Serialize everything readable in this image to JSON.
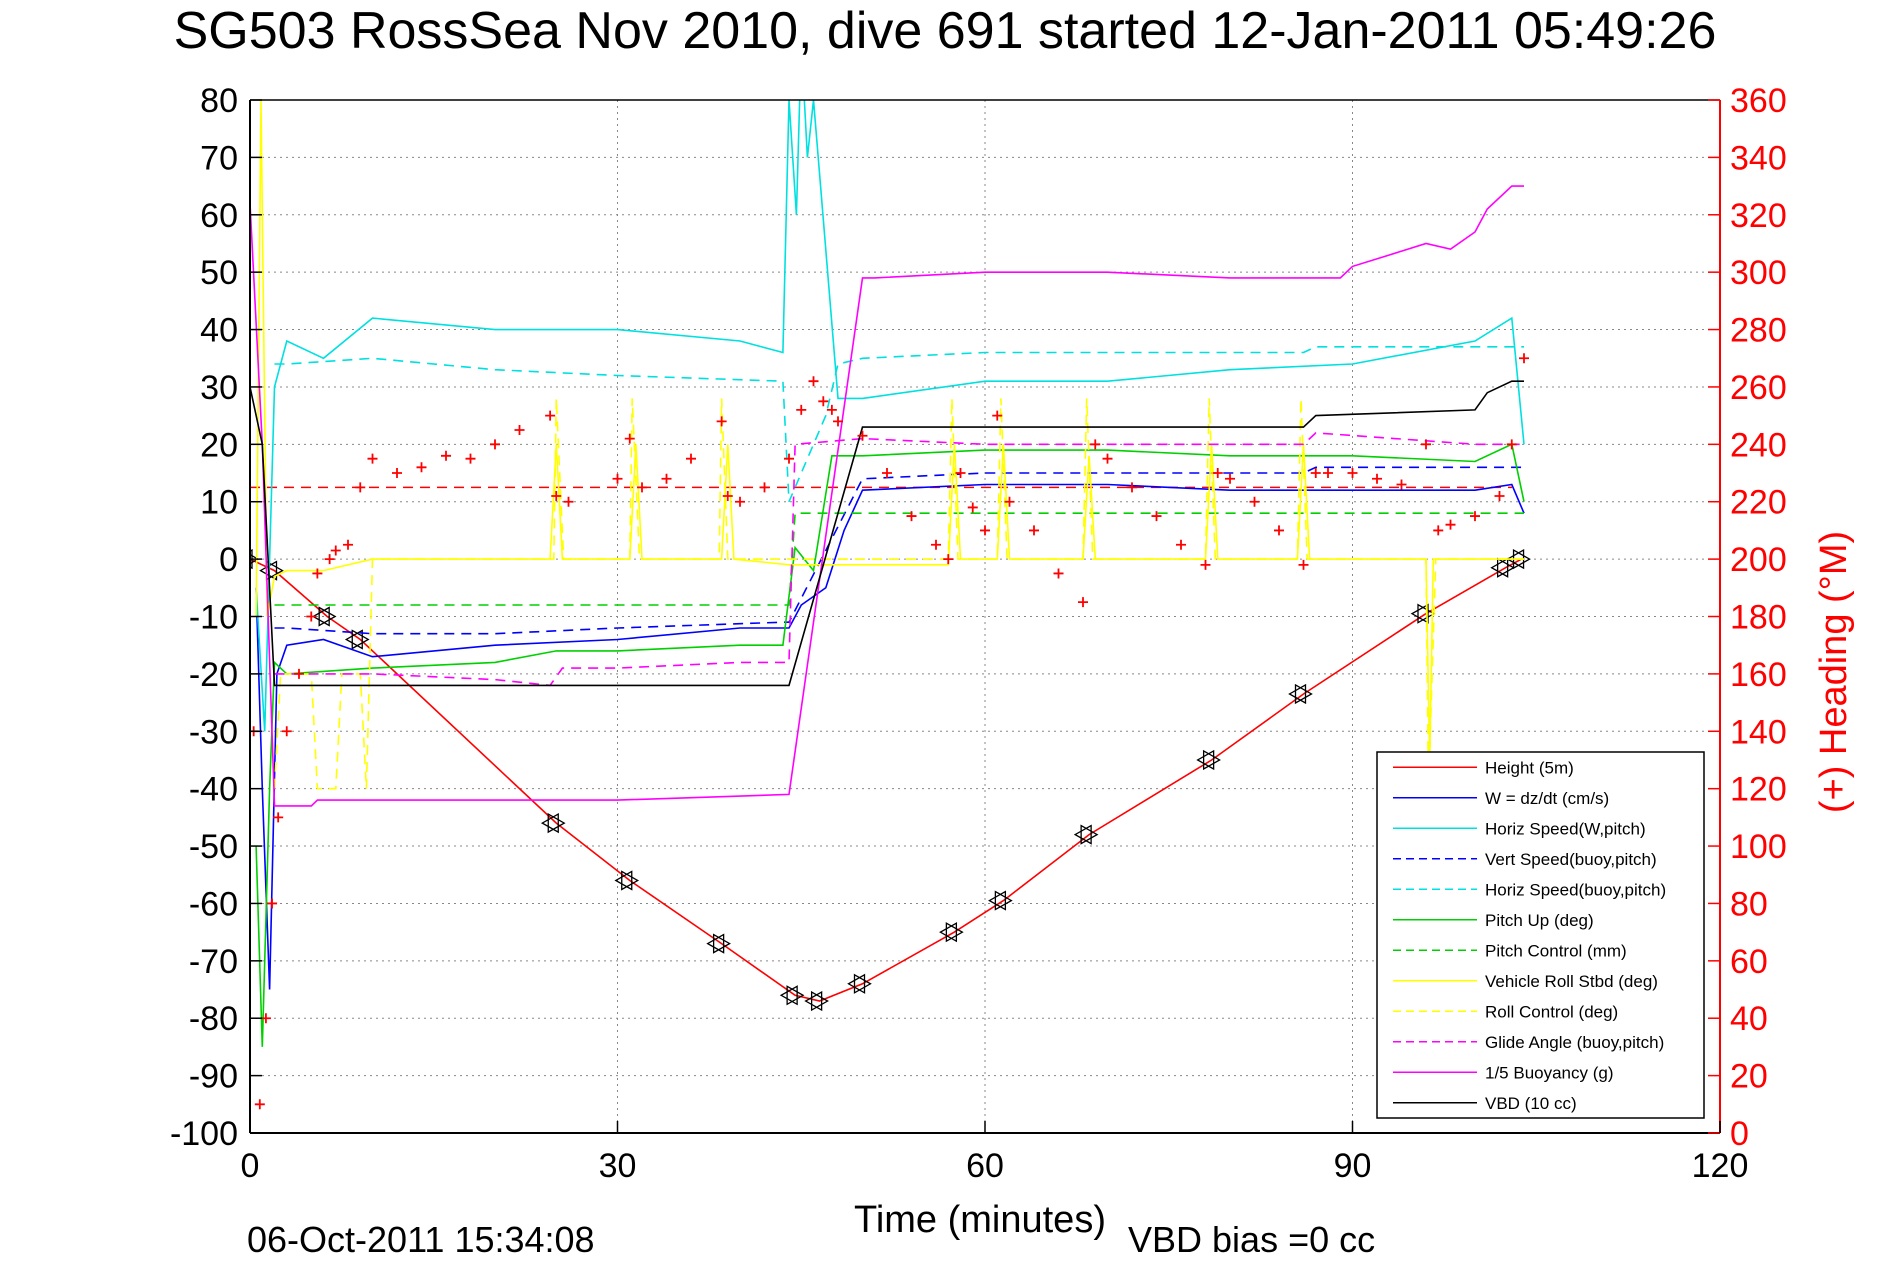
{
  "chart_data": {
    "type": "line",
    "title": "SG503 RossSea Nov 2010, dive 691 started 12-Jan-2011 05:49:26",
    "xlabel": "Time (minutes)",
    "ylabel_right": "(+) Heading (°M)",
    "footer_left": "06-Oct-2011 15:34:08",
    "footer_right": "VBD bias =0 cc",
    "xlim": [
      0,
      120
    ],
    "ylim": [
      -100,
      80
    ],
    "ylim_right": [
      0,
      360
    ],
    "xticks": [
      "0",
      "30",
      "60",
      "90",
      "120"
    ],
    "yticks": [
      "80",
      "70",
      "60",
      "50",
      "40",
      "30",
      "20",
      "10",
      "0",
      "-10",
      "-20",
      "-30",
      "-40",
      "-50",
      "-60",
      "-70",
      "-80",
      "-90",
      "-100"
    ],
    "yticks_right": [
      "360",
      "340",
      "320",
      "300",
      "280",
      "260",
      "240",
      "220",
      "200",
      "180",
      "160",
      "140",
      "120",
      "100",
      "80",
      "60",
      "40",
      "20",
      "0"
    ],
    "grid": true,
    "legend_position": "bottom-right",
    "series": [
      {
        "name": "Height (5m)",
        "color": "#ff0000",
        "style": "solid",
        "marker": "triangle",
        "x": [
          0,
          2,
          6.3,
          9,
          25,
          31,
          38.5,
          44.5,
          46.5,
          50,
          57.5,
          61.5,
          68.5,
          78.5,
          86,
          96,
          102.5,
          103.8
        ],
        "y": [
          0,
          -2,
          -10,
          -14,
          -46,
          -56,
          -67,
          -76,
          -77,
          -74,
          -65,
          -59.5,
          -48,
          -35,
          -23.5,
          -9.5,
          -1.5,
          0
        ]
      },
      {
        "name": "W = dz/dt (cm/s)",
        "color": "#0000ff",
        "style": "solid",
        "x": [
          0.5,
          1,
          1.6,
          2.2,
          3,
          6,
          10,
          20,
          30,
          40,
          44,
          45,
          47,
          48.5,
          50,
          60,
          70,
          80,
          90,
          100,
          103,
          104
        ],
        "y": [
          -5,
          -40,
          -75,
          -20,
          -15,
          -14,
          -17,
          -15,
          -14,
          -12,
          -12,
          -8,
          -5,
          5,
          12,
          13,
          13,
          12,
          12,
          12,
          13,
          8
        ]
      },
      {
        "name": "Horiz Speed(W,pitch)",
        "color": "#00e0e0",
        "style": "solid",
        "x": [
          0.5,
          1.2,
          2,
          3,
          6,
          10,
          20,
          30,
          40,
          43.5,
          44,
          44.6,
          45,
          45.5,
          46,
          48,
          50,
          60,
          70,
          80,
          90,
          100,
          103,
          104
        ],
        "y": [
          -5,
          -30,
          30,
          38,
          35,
          42,
          40,
          40,
          38,
          36,
          80,
          60,
          90,
          70,
          80,
          28,
          28,
          31,
          31,
          33,
          34,
          38,
          42,
          20
        ]
      },
      {
        "name": "Vert Speed(buoy,pitch)",
        "color": "#0000ff",
        "style": "dashed",
        "x": [
          2,
          3,
          10,
          20,
          30,
          43.5,
          44,
          50,
          60,
          70,
          80,
          86,
          87,
          100,
          104
        ],
        "y": [
          -12,
          -12,
          -13,
          -13,
          -12,
          -11,
          -11,
          14,
          15,
          15,
          15,
          15,
          16,
          16,
          16
        ]
      },
      {
        "name": "Horiz Speed(buoy,pitch)",
        "color": "#00e0e0",
        "style": "dashed",
        "x": [
          2,
          3,
          10,
          20,
          30,
          43.5,
          44,
          47,
          48,
          50,
          60,
          70,
          80,
          86,
          87,
          100,
          104
        ],
        "y": [
          34,
          34,
          35,
          33,
          32,
          31,
          10,
          25,
          34,
          35,
          36,
          36,
          36,
          36,
          37,
          37,
          37
        ]
      },
      {
        "name": "Pitch Up (deg)",
        "color": "#00d000",
        "style": "solid",
        "x": [
          0.5,
          1,
          1.6,
          2,
          3,
          10,
          20,
          25,
          30,
          40,
          43.5,
          44.5,
          46,
          47.5,
          50,
          60,
          70,
          80,
          90,
          100,
          103,
          104
        ],
        "y": [
          -50,
          -85,
          -40,
          -18,
          -20,
          -19,
          -18,
          -16,
          -16,
          -15,
          -15,
          2,
          -2,
          18,
          18,
          19,
          19,
          18,
          18,
          17,
          20,
          10
        ]
      },
      {
        "name": "Pitch Control (mm)",
        "color": "#00d000",
        "style": "dashed",
        "x": [
          2,
          44,
          44.5,
          104
        ],
        "y": [
          -8,
          -8,
          8,
          8
        ]
      },
      {
        "name": "Vehicle Roll Stbd (deg)",
        "color": "#ffff00",
        "style": "solid",
        "x": [
          0.5,
          0.9,
          1.4,
          2,
          3,
          6,
          10,
          24.5,
          25,
          25.5,
          31,
          31.5,
          32,
          38.5,
          39,
          39.5,
          44,
          57,
          57.5,
          58,
          60,
          61,
          61.5,
          62,
          68,
          68.5,
          69,
          78,
          78.5,
          79,
          85.5,
          86,
          86.5,
          96,
          96.3,
          96.6,
          97,
          104
        ],
        "y": [
          -10,
          80,
          -10,
          -3,
          -2,
          -2,
          0,
          0,
          20,
          0,
          0,
          20,
          0,
          0,
          20,
          0,
          -1,
          -1,
          20,
          0,
          0,
          0,
          20,
          0,
          0,
          18,
          0,
          0,
          20,
          0,
          0,
          20,
          0,
          0,
          -35,
          0,
          0,
          0
        ]
      },
      {
        "name": "Roll Control (deg)",
        "color": "#ffff00",
        "style": "dashed",
        "x": [
          2,
          2.5,
          5,
          5.5,
          7,
          7.5,
          9,
          9.5,
          10,
          24.8,
          25,
          25.6,
          31,
          31.2,
          31.8,
          38.3,
          38.5,
          39,
          44,
          57,
          57.3,
          57.8,
          61,
          61.3,
          61.8,
          68,
          68.3,
          68.8,
          78,
          78.3,
          78.8,
          85.5,
          85.8,
          86.3,
          96,
          96.2,
          96.8,
          104
        ],
        "y": [
          -40,
          -20,
          -20,
          -40,
          -40,
          -20,
          -20,
          -40,
          0,
          0,
          28,
          0,
          0,
          28,
          0,
          0,
          28,
          0,
          0,
          0,
          28,
          0,
          0,
          28,
          0,
          0,
          28,
          0,
          0,
          28,
          0,
          0,
          28,
          0,
          0,
          -40,
          0,
          0
        ]
      },
      {
        "name": "Glide Angle (buoy,pitch)",
        "color": "#ff00ff",
        "style": "dashed",
        "x": [
          2,
          10,
          20,
          24.5,
          25.5,
          30,
          40,
          44,
          44.5,
          50,
          60,
          70,
          80,
          86,
          87,
          100,
          104
        ],
        "y": [
          -20,
          -20,
          -21,
          -22,
          -19,
          -19,
          -18,
          -18,
          20,
          21,
          20,
          20,
          20,
          20,
          22,
          20,
          20
        ]
      },
      {
        "name": "1/5 Buoyancy (g)",
        "color": "#ff00ff",
        "style": "solid",
        "x": [
          0,
          1,
          2,
          5,
          5.5,
          10,
          20,
          30,
          44,
          50,
          51,
          60,
          70,
          80,
          89,
          90,
          93,
          96,
          98,
          100,
          101,
          103,
          104
        ],
        "y": [
          62,
          20,
          -43,
          -43,
          -42,
          -42,
          -42,
          -42,
          -41,
          49,
          49,
          50,
          50,
          49,
          49,
          51,
          53,
          55,
          54,
          57,
          61,
          65,
          65
        ]
      },
      {
        "name": "VBD (10 cc)",
        "color": "#000000",
        "style": "solid",
        "x": [
          0,
          1,
          2,
          10,
          44,
          50,
          60,
          70,
          80,
          86,
          87,
          100,
          101,
          103,
          104
        ],
        "y": [
          30,
          20,
          -22,
          -22,
          -22,
          23,
          23,
          23,
          23,
          23,
          25,
          26,
          29,
          31,
          31
        ]
      }
    ],
    "heading": {
      "name": "(+) Heading",
      "color": "#ff0000",
      "marker": "+",
      "axis": "right",
      "x": [
        0.3,
        0.8,
        1.3,
        1.8,
        2.3,
        3,
        4,
        5,
        5.5,
        6.5,
        7,
        8,
        9,
        10,
        12,
        14,
        16,
        18,
        20,
        22,
        24.5,
        25,
        26,
        30,
        31,
        32,
        34,
        36,
        38.5,
        39,
        40,
        42,
        44,
        45,
        46,
        46.8,
        47.5,
        48,
        50,
        52,
        54,
        56,
        57,
        58,
        59,
        60,
        61,
        62,
        64,
        66,
        68,
        69,
        70,
        72,
        74,
        76,
        78,
        79,
        80,
        82,
        84,
        86,
        87,
        88,
        90,
        92,
        94,
        96,
        97,
        98,
        100,
        102,
        103,
        104
      ],
      "y": [
        140,
        10,
        40,
        80,
        110,
        140,
        160,
        180,
        195,
        200,
        203,
        205,
        225,
        235,
        230,
        232,
        236,
        235,
        240,
        245,
        250,
        222,
        220,
        228,
        242,
        225,
        228,
        235,
        248,
        222,
        220,
        225,
        235,
        252,
        262,
        255,
        252,
        248,
        243,
        230,
        215,
        205,
        200,
        230,
        218,
        210,
        250,
        220,
        210,
        195,
        185,
        240,
        235,
        225,
        215,
        205,
        198,
        230,
        228,
        220,
        210,
        198,
        230,
        230,
        230,
        228,
        226,
        240,
        210,
        212,
        215,
        222,
        240,
        270
      ]
    },
    "reference_line": {
      "color": "#ff0000",
      "style": "dashed",
      "y_right": 225
    }
  }
}
